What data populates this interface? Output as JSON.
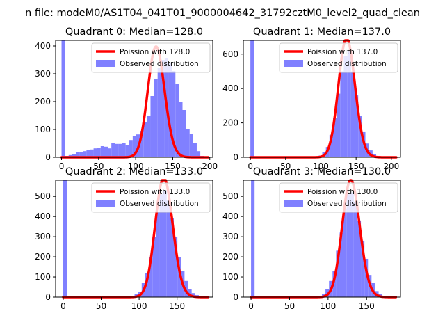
{
  "suptitle": "n file: modeM0/AS1T04_041T01_9000004642_31792cztM0_level2_quad_clean",
  "legend": {
    "model_label_prefix": "Poission with ",
    "observed_label": "Observed distribution"
  },
  "colors": {
    "model": "#ff0000",
    "observed": "#8080ff"
  },
  "chart_data": [
    {
      "type": "bar",
      "title": "Quadrant 0: Median=128.0",
      "median": 128.0,
      "model_label": "Poission with 128.0",
      "xlim": [
        -8,
        204
      ],
      "ylim": [
        0,
        420
      ],
      "xticks": [
        0,
        50,
        100,
        150,
        200
      ],
      "xtick_labels": [
        "0",
        "50",
        "100",
        "150",
        "200"
      ],
      "yticks": [
        0,
        100,
        200,
        300,
        400
      ],
      "ytick_labels": [
        "0",
        "100",
        "200",
        "300",
        "400"
      ],
      "bin_width": 4.8,
      "bins": [
        {
          "x": 0,
          "h": 420
        },
        {
          "x": 4.8,
          "h": 5
        },
        {
          "x": 9.6,
          "h": 8
        },
        {
          "x": 14.4,
          "h": 12
        },
        {
          "x": 19.2,
          "h": 20
        },
        {
          "x": 24,
          "h": 18
        },
        {
          "x": 28.8,
          "h": 22
        },
        {
          "x": 33.6,
          "h": 25
        },
        {
          "x": 38.4,
          "h": 28
        },
        {
          "x": 43.2,
          "h": 32
        },
        {
          "x": 48,
          "h": 35
        },
        {
          "x": 52.8,
          "h": 40
        },
        {
          "x": 57.6,
          "h": 38
        },
        {
          "x": 62.4,
          "h": 32
        },
        {
          "x": 67.2,
          "h": 52
        },
        {
          "x": 72,
          "h": 48
        },
        {
          "x": 76.8,
          "h": 48
        },
        {
          "x": 81.6,
          "h": 50
        },
        {
          "x": 86.4,
          "h": 45
        },
        {
          "x": 91.2,
          "h": 62
        },
        {
          "x": 96,
          "h": 75
        },
        {
          "x": 100.8,
          "h": 82
        },
        {
          "x": 105.6,
          "h": 95
        },
        {
          "x": 110.4,
          "h": 125
        },
        {
          "x": 115.2,
          "h": 150
        },
        {
          "x": 120,
          "h": 220
        },
        {
          "x": 124.8,
          "h": 280
        },
        {
          "x": 129.6,
          "h": 320
        },
        {
          "x": 134.4,
          "h": 350
        },
        {
          "x": 139.2,
          "h": 355
        },
        {
          "x": 144,
          "h": 340
        },
        {
          "x": 148.8,
          "h": 310
        },
        {
          "x": 153.6,
          "h": 265
        },
        {
          "x": 158.4,
          "h": 200
        },
        {
          "x": 163.2,
          "h": 170
        },
        {
          "x": 168,
          "h": 100
        },
        {
          "x": 172.8,
          "h": 85
        },
        {
          "x": 177.6,
          "h": 52
        },
        {
          "x": 182.4,
          "h": 22
        },
        {
          "x": 187.2,
          "h": 5
        }
      ]
    },
    {
      "type": "bar",
      "title": "Quadrant 1: Median=137.0",
      "median": 137.0,
      "model_label": "Poission with 137.0",
      "xlim": [
        -10,
        213
      ],
      "ylim": [
        0,
        680
      ],
      "xticks": [
        0,
        50,
        100,
        150,
        200
      ],
      "xtick_labels": [
        "0",
        "50",
        "100",
        "150",
        "200"
      ],
      "yticks": [
        0,
        200,
        400,
        600
      ],
      "ytick_labels": [
        "0",
        "200",
        "400",
        "600"
      ],
      "bin_width": 5.1,
      "bins": [
        {
          "x": 0,
          "h": 680
        },
        {
          "x": 96.9,
          "h": 10
        },
        {
          "x": 102,
          "h": 30
        },
        {
          "x": 107.1,
          "h": 60
        },
        {
          "x": 112.2,
          "h": 130
        },
        {
          "x": 117.3,
          "h": 230
        },
        {
          "x": 122.4,
          "h": 370
        },
        {
          "x": 127.5,
          "h": 500
        },
        {
          "x": 132.6,
          "h": 590
        },
        {
          "x": 137.7,
          "h": 620
        },
        {
          "x": 142.8,
          "h": 500
        },
        {
          "x": 147.9,
          "h": 360
        },
        {
          "x": 153,
          "h": 240
        },
        {
          "x": 158.1,
          "h": 150
        },
        {
          "x": 163.2,
          "h": 80
        },
        {
          "x": 168.3,
          "h": 40
        },
        {
          "x": 173.4,
          "h": 20
        },
        {
          "x": 178.5,
          "h": 8
        },
        {
          "x": 183.6,
          "h": 4
        }
      ]
    },
    {
      "type": "bar",
      "title": "Quadrant 2: Median=133.0",
      "median": 133.0,
      "model_label": "Poission with 133.0",
      "xlim": [
        -10,
        197
      ],
      "ylim": [
        0,
        580
      ],
      "xticks": [
        0,
        50,
        100,
        150
      ],
      "xtick_labels": [
        "0",
        "50",
        "100",
        "150"
      ],
      "yticks": [
        0,
        100,
        200,
        300,
        400,
        500
      ],
      "ytick_labels": [
        "0",
        "100",
        "200",
        "300",
        "400",
        "500"
      ],
      "bin_width": 4.7,
      "bins": [
        {
          "x": 0,
          "h": 580
        },
        {
          "x": 89.3,
          "h": 5
        },
        {
          "x": 94,
          "h": 15
        },
        {
          "x": 98.7,
          "h": 25
        },
        {
          "x": 103.4,
          "h": 70
        },
        {
          "x": 108.1,
          "h": 120
        },
        {
          "x": 112.8,
          "h": 200
        },
        {
          "x": 117.5,
          "h": 300
        },
        {
          "x": 122.2,
          "h": 420
        },
        {
          "x": 126.9,
          "h": 510
        },
        {
          "x": 131.6,
          "h": 530
        },
        {
          "x": 136.3,
          "h": 480
        },
        {
          "x": 141,
          "h": 390
        },
        {
          "x": 145.7,
          "h": 300
        },
        {
          "x": 150.4,
          "h": 200
        },
        {
          "x": 155.1,
          "h": 130
        },
        {
          "x": 159.8,
          "h": 80
        },
        {
          "x": 164.5,
          "h": 40
        },
        {
          "x": 169.2,
          "h": 20
        },
        {
          "x": 173.9,
          "h": 10
        }
      ]
    },
    {
      "type": "bar",
      "title": "Quadrant 3: Median=130.0",
      "median": 130.0,
      "model_label": "Poission with 130.0",
      "xlim": [
        -10,
        194
      ],
      "ylim": [
        0,
        580
      ],
      "xticks": [
        0,
        50,
        100,
        150
      ],
      "xtick_labels": [
        "0",
        "50",
        "100",
        "150"
      ],
      "yticks": [
        0,
        100,
        200,
        300,
        400,
        500
      ],
      "ytick_labels": [
        "0",
        "100",
        "200",
        "300",
        "400",
        "500"
      ],
      "bin_width": 4.6,
      "bins": [
        {
          "x": 0,
          "h": 580
        },
        {
          "x": 87.4,
          "h": 5
        },
        {
          "x": 92,
          "h": 15
        },
        {
          "x": 96.6,
          "h": 40
        },
        {
          "x": 101.2,
          "h": 80
        },
        {
          "x": 105.8,
          "h": 130
        },
        {
          "x": 110.4,
          "h": 230
        },
        {
          "x": 115,
          "h": 320
        },
        {
          "x": 119.6,
          "h": 440
        },
        {
          "x": 124.2,
          "h": 510
        },
        {
          "x": 128.8,
          "h": 520
        },
        {
          "x": 133.4,
          "h": 470
        },
        {
          "x": 138,
          "h": 380
        },
        {
          "x": 142.6,
          "h": 280
        },
        {
          "x": 147.2,
          "h": 190
        },
        {
          "x": 151.8,
          "h": 110
        },
        {
          "x": 156.4,
          "h": 70
        },
        {
          "x": 161,
          "h": 30
        },
        {
          "x": 165.6,
          "h": 15
        },
        {
          "x": 170.2,
          "h": 5
        }
      ]
    }
  ]
}
